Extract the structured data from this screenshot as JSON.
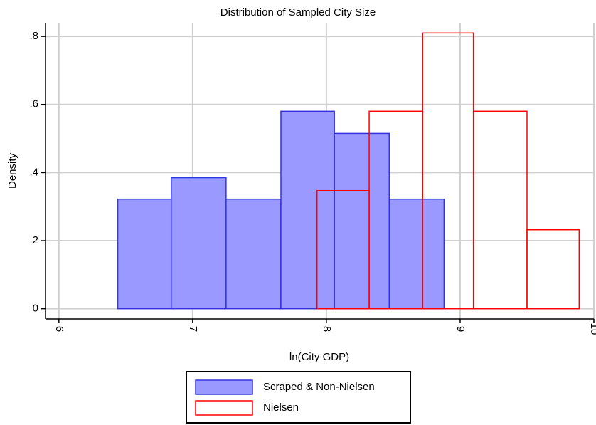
{
  "chart_data": {
    "type": "histogram",
    "title": "Distribution of Sampled City Size",
    "xlabel": "ln(City GDP)",
    "ylabel": "Density",
    "series": [
      {
        "name": "Scraped & Non-Nielsen",
        "color": "#3333dd",
        "fill": "#9999ff",
        "bins": [
          6.44,
          6.84,
          7.25,
          7.66,
          8.06,
          8.47,
          8.88
        ],
        "values": [
          0.322,
          0.385,
          0.322,
          0.58,
          0.515,
          0.322
        ]
      },
      {
        "name": "Nielsen",
        "color": "#ff0000",
        "fill": "none",
        "bins": [
          7.93,
          8.32,
          8.72,
          9.1,
          9.5,
          9.89
        ],
        "values": [
          0.347,
          0.58,
          0.81,
          0.58,
          0.232
        ]
      }
    ],
    "xlim": [
      5.9,
      10.0
    ],
    "ylim": [
      -0.03,
      0.84
    ],
    "xticks": [
      6,
      7,
      8,
      9,
      10
    ],
    "yticks": [
      0,
      {
        "value": 0.2,
        "label": ".2"
      },
      {
        "value": 0.4,
        "label": ".4"
      },
      {
        "value": 0.6,
        "label": ".6"
      },
      {
        "value": 0.8,
        "label": ".8"
      }
    ],
    "grid": true
  }
}
